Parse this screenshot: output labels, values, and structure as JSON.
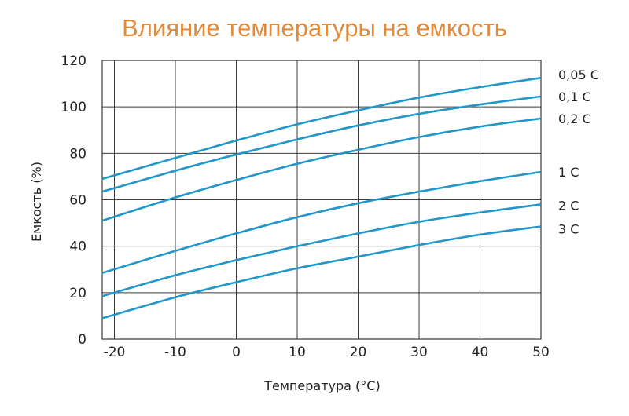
{
  "title": "Влияние температуры на емкость",
  "chart_data": {
    "type": "line",
    "title": "Влияние температуры на емкость",
    "xlabel": "Температура (°C)",
    "ylabel": "Емкость (%)",
    "xlim": [
      -22,
      50
    ],
    "ylim": [
      0,
      120
    ],
    "xticks": [
      "-20",
      "-10",
      "0",
      "10",
      "20",
      "30",
      "40",
      "50"
    ],
    "yticks": [
      "0",
      "20",
      "40",
      "60",
      "80",
      "100",
      "120"
    ],
    "grid": true,
    "line_color": "#2196c8",
    "series": [
      {
        "name": "0,05 C",
        "x": [
          -22,
          -10,
          0,
          10,
          20,
          30,
          40,
          50
        ],
        "y": [
          69,
          78,
          85.5,
          92.5,
          98.5,
          104,
          108.5,
          112.5
        ]
      },
      {
        "name": "0,1 C",
        "x": [
          -22,
          -10,
          0,
          10,
          20,
          30,
          40,
          50
        ],
        "y": [
          63.5,
          72.5,
          79.5,
          86,
          92,
          97,
          101,
          104.5
        ]
      },
      {
        "name": "0,2 C",
        "x": [
          -22,
          -10,
          0,
          10,
          20,
          30,
          40,
          50
        ],
        "y": [
          51,
          61,
          68.5,
          75.5,
          81.5,
          87,
          91.5,
          95
        ]
      },
      {
        "name": "1 C",
        "x": [
          -22,
          -10,
          0,
          10,
          20,
          30,
          40,
          50
        ],
        "y": [
          28.5,
          38,
          45.5,
          52.5,
          58.5,
          63.5,
          68,
          72
        ]
      },
      {
        "name": "2 C",
        "x": [
          -22,
          -10,
          0,
          10,
          20,
          30,
          40,
          50
        ],
        "y": [
          18.5,
          27.5,
          34,
          40,
          45.5,
          50.5,
          54.5,
          58
        ]
      },
      {
        "name": "3 C",
        "x": [
          -22,
          -10,
          0,
          10,
          20,
          30,
          40,
          50
        ],
        "y": [
          9,
          18,
          24.5,
          30.5,
          35.5,
          40.5,
          45,
          48.5
        ]
      }
    ]
  }
}
